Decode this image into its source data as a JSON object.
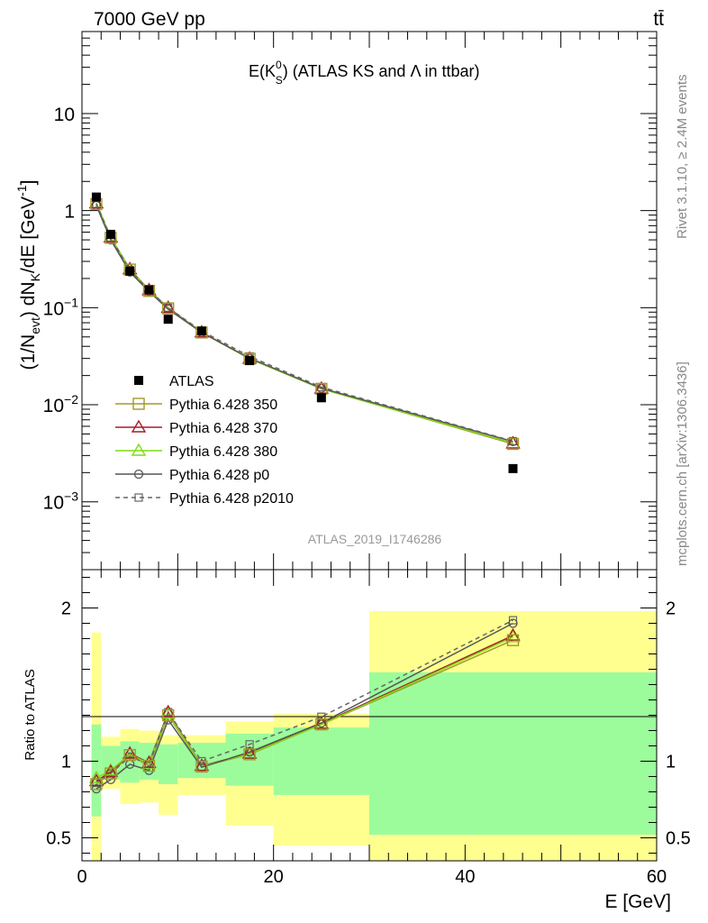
{
  "header": {
    "energy_label": "7000 GeV pp",
    "process_label": "tt̄"
  },
  "side_labels": {
    "rivet": "Rivet 3.1.10, ≥ 2.4M events",
    "mcplots": "mcplots.cern.ch [arXiv:1306.3436]"
  },
  "chart_data": [
    {
      "type": "line",
      "panel": "main",
      "title_parts": {
        "pre": "E(K",
        "sup": "0",
        "sub": "S",
        "post": ") (ATLAS KS and Λ in ttbar)"
      },
      "ylabel_parts": {
        "a": "(1/N",
        "a_sub": "evt",
        "b": ") dN",
        "b_sub": "K",
        "c": "/dE [GeV",
        "c_sup": "-1",
        "d": "]"
      },
      "yscale": "log",
      "ylim": [
        0.0002,
        70
      ],
      "xlim": [
        0,
        60
      ],
      "y_ticks": [
        {
          "value": 10,
          "label": "10"
        },
        {
          "value": 1,
          "label": "1"
        },
        {
          "value": 0.1,
          "label": "10",
          "sup": "−1"
        },
        {
          "value": 0.01,
          "label": "10",
          "sup": "−2"
        },
        {
          "value": 0.001,
          "label": "10",
          "sup": "−3"
        }
      ],
      "watermark": "ATLAS_2019_I1746286",
      "x": [
        1.5,
        3,
        5,
        7,
        9,
        12.5,
        17.5,
        25,
        45
      ],
      "series": [
        {
          "name": "ATLAS",
          "marker": "filled-square",
          "color": "#000000",
          "values": [
            1.38,
            0.57,
            0.238,
            0.153,
            0.076,
            0.0575,
            0.0285,
            0.0118,
            0.0022
          ]
        },
        {
          "name": "Pythia 6.428 350",
          "marker": "open-square",
          "color": "#a09a2e",
          "dash": "solid",
          "values": [
            1.17,
            0.525,
            0.247,
            0.149,
            0.0985,
            0.0555,
            0.0298,
            0.0146,
            0.00395
          ]
        },
        {
          "name": "Pythia 6.428 370",
          "marker": "open-triangle",
          "color": "#a31d2b",
          "dash": "solid",
          "values": [
            1.19,
            0.53,
            0.25,
            0.152,
            0.1,
            0.0558,
            0.0299,
            0.0147,
            0.004
          ]
        },
        {
          "name": "Pythia 6.428 380",
          "marker": "open-triangle",
          "color": "#7fdc12",
          "dash": "solid",
          "values": [
            1.2,
            0.535,
            0.248,
            0.151,
            0.099,
            0.0557,
            0.0298,
            0.0146,
            0.004
          ]
        },
        {
          "name": "Pythia 6.428 p0",
          "marker": "open-circle",
          "color": "#555555",
          "dash": "solid",
          "values": [
            1.13,
            0.5,
            0.233,
            0.147,
            0.0965,
            0.0555,
            0.0302,
            0.0148,
            0.00418
          ]
        },
        {
          "name": "Pythia 6.428 p2010",
          "marker": "open-square-small",
          "color": "#666666",
          "dash": "dashed",
          "values": [
            1.18,
            0.53,
            0.245,
            0.15,
            0.1,
            0.0575,
            0.0315,
            0.0152,
            0.00422
          ]
        }
      ]
    },
    {
      "type": "line",
      "panel": "ratio",
      "ylabel": "Ratio to ATLAS",
      "xlabel": "E [GeV]",
      "ylim": [
        0.35,
        2.25
      ],
      "xlim": [
        0,
        60
      ],
      "x_ticks": [
        {
          "value": 0,
          "label": "0"
        },
        {
          "value": 20,
          "label": "20"
        },
        {
          "value": 40,
          "label": "40"
        },
        {
          "value": 60,
          "label": "60"
        }
      ],
      "y_ticks": [
        {
          "value": 0.5,
          "label": "0.5"
        },
        {
          "value": 1,
          "label": "1"
        },
        {
          "value": 2,
          "label": "2"
        }
      ],
      "bands": {
        "edges": [
          1,
          2,
          4,
          6,
          8,
          10,
          15,
          20,
          30,
          60
        ],
        "yellow_low": [
          0.35,
          0.82,
          0.72,
          0.73,
          0.65,
          0.78,
          0.58,
          0.45,
          0.35
        ],
        "yellow_high": [
          1.84,
          1.16,
          1.21,
          1.2,
          1.17,
          1.17,
          1.26,
          1.31,
          1.98
        ],
        "green_low": [
          0.64,
          0.88,
          0.86,
          0.88,
          0.85,
          0.89,
          0.84,
          0.78,
          0.52
        ],
        "green_high": [
          1.24,
          1.1,
          1.13,
          1.12,
          1.11,
          1.12,
          1.18,
          1.22,
          1.58
        ]
      },
      "x": [
        1.5,
        3,
        5,
        7,
        9,
        12.5,
        17.5,
        25,
        45
      ],
      "series": [
        {
          "name": "Pythia 6.428 350",
          "values": [
            0.85,
            0.92,
            1.04,
            0.97,
            1.3,
            0.965,
            1.045,
            1.24,
            1.79
          ]
        },
        {
          "name": "Pythia 6.428 370",
          "values": [
            0.87,
            0.93,
            1.05,
            0.99,
            1.32,
            0.97,
            1.05,
            1.245,
            1.82
          ]
        },
        {
          "name": "Pythia 6.428 380",
          "values": [
            0.89,
            0.94,
            1.045,
            0.985,
            1.31,
            0.968,
            1.048,
            1.24,
            1.81
          ]
        },
        {
          "name": "Pythia 6.428 p0",
          "values": [
            0.82,
            0.88,
            0.98,
            0.94,
            1.27,
            0.96,
            1.06,
            1.25,
            1.9
          ]
        },
        {
          "name": "Pythia 6.428 p2010",
          "values": [
            0.86,
            0.92,
            1.03,
            0.98,
            1.32,
            1.0,
            1.11,
            1.29,
            1.92
          ]
        }
      ]
    }
  ]
}
